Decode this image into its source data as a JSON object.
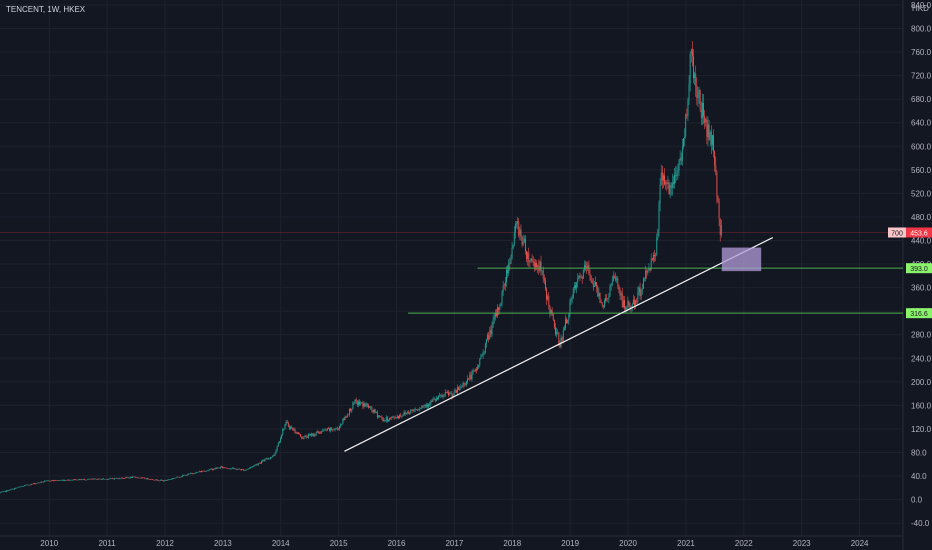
{
  "header": {
    "symbol_label": "TENCENT, 1W, HKEX"
  },
  "price_axis": {
    "currency": "HKD",
    "ticks": [
      "840.0",
      "800.0",
      "760.0",
      "720.0",
      "680.0",
      "640.0",
      "600.0",
      "560.0",
      "520.0",
      "480.0",
      "440.0",
      "400.0",
      "360.0",
      "320.0",
      "280.0",
      "240.0",
      "200.0",
      "160.0",
      "120.0",
      "80.0",
      "40.0",
      "0.0",
      "-40.0"
    ]
  },
  "time_axis": {
    "ticks": [
      "2010",
      "2011",
      "2012",
      "2013",
      "2014",
      "2015",
      "2016",
      "2017",
      "2018",
      "2019",
      "2020",
      "2021",
      "2022",
      "2023",
      "2024"
    ]
  },
  "price_badges": {
    "current_code": "700",
    "current_price": "453.6",
    "level_upper": "393.0",
    "level_lower": "316.6"
  },
  "colors": {
    "background": "#131722",
    "up": "#26a69a",
    "down": "#ef5350",
    "level_line": "#4caf50",
    "level_badge": "#8bf26b",
    "trendline": "#f2f2f2",
    "zone": "#b39ddb",
    "price_badge": "#f23645"
  },
  "chart_data": {
    "type": "candlestick",
    "symbol": "TENCENT",
    "interval": "1W",
    "exchange": "HKEX",
    "currency": "HKD",
    "last_price": 453.6,
    "y_range": [
      -55,
      845
    ],
    "x_range": [
      2009.15,
      2024.75
    ],
    "price_path": [
      [
        2009.15,
        11
      ],
      [
        2009.6,
        24
      ],
      [
        2010.0,
        32
      ],
      [
        2010.5,
        34
      ],
      [
        2011.0,
        35
      ],
      [
        2011.5,
        38
      ],
      [
        2012.0,
        32
      ],
      [
        2012.5,
        45
      ],
      [
        2013.0,
        55
      ],
      [
        2013.4,
        50
      ],
      [
        2013.9,
        75
      ],
      [
        2014.1,
        130
      ],
      [
        2014.4,
        105
      ],
      [
        2014.8,
        118
      ],
      [
        2015.0,
        120
      ],
      [
        2015.3,
        165
      ],
      [
        2015.5,
        160
      ],
      [
        2015.8,
        135
      ],
      [
        2016.0,
        140
      ],
      [
        2016.5,
        160
      ],
      [
        2016.9,
        180
      ],
      [
        2017.0,
        178
      ],
      [
        2017.4,
        220
      ],
      [
        2017.8,
        330
      ],
      [
        2018.0,
        420
      ],
      [
        2018.1,
        470
      ],
      [
        2018.3,
        410
      ],
      [
        2018.5,
        395
      ],
      [
        2018.75,
        290
      ],
      [
        2018.85,
        265
      ],
      [
        2019.1,
        360
      ],
      [
        2019.3,
        395
      ],
      [
        2019.6,
        330
      ],
      [
        2019.8,
        380
      ],
      [
        2019.95,
        325
      ],
      [
        2020.15,
        335
      ],
      [
        2020.3,
        375
      ],
      [
        2020.5,
        425
      ],
      [
        2020.6,
        560
      ],
      [
        2020.75,
        520
      ],
      [
        2020.9,
        570
      ],
      [
        2021.0,
        620
      ],
      [
        2021.1,
        760
      ],
      [
        2021.2,
        700
      ],
      [
        2021.35,
        640
      ],
      [
        2021.5,
        600
      ],
      [
        2021.6,
        465
      ],
      [
        2021.62,
        453.6
      ]
    ],
    "horizontal_levels": [
      {
        "price": 393.0,
        "from": 2017.4
      },
      {
        "price": 316.6,
        "from": 2016.2
      }
    ],
    "trendline": {
      "start": [
        2015.1,
        82
      ],
      "end": [
        2022.5,
        445
      ]
    },
    "zone": {
      "x": [
        2021.62,
        2022.3
      ],
      "y": [
        388,
        428
      ]
    }
  }
}
